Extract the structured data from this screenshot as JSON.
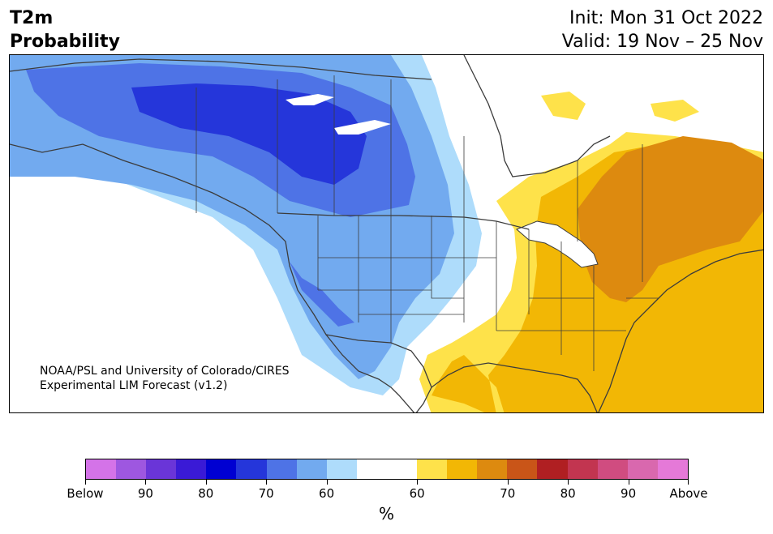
{
  "title": {
    "variable": "T2m",
    "subtitle": "Probability",
    "init": "Init: Mon 31 Oct 2022",
    "valid": "Valid: 19 Nov – 25 Nov"
  },
  "credit": {
    "line1": "NOAA/PSL and University of Colorado/CIRES",
    "line2": "Experimental LIM Forecast (v1.2)"
  },
  "colorbar": {
    "unit": "%",
    "colors": [
      "#d473e8",
      "#9e57e0",
      "#6a35d8",
      "#3a1ad6",
      "#0000d2",
      "#2536da",
      "#4e73e6",
      "#72aaef",
      "#aedcfb",
      "#ffffff",
      "#ffffff",
      "#fee24a",
      "#f2b705",
      "#dd8a0f",
      "#c95518",
      "#b01f22",
      "#c23550",
      "#d04c80",
      "#d968ae",
      "#e579d8"
    ],
    "labels": [
      "Below",
      "90",
      "80",
      "70",
      "60",
      "60",
      "70",
      "80",
      "90",
      "Above"
    ]
  },
  "map": {
    "region": "North America",
    "colors": {
      "blue_light": "#aedcfb",
      "blue_mid": "#72aaef",
      "blue": "#4e73e6",
      "blue_dark": "#2536da",
      "yellow": "#fee24a",
      "gold": "#f2b705",
      "orange": "#dd8a0f",
      "outline": "#3c3c3c"
    }
  }
}
